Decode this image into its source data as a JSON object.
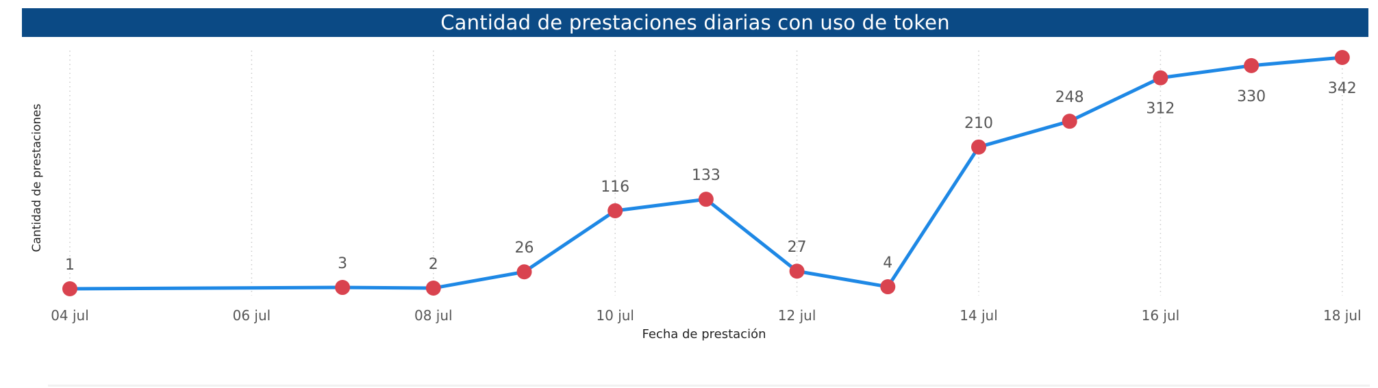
{
  "chart_data": {
    "type": "line",
    "title": "Cantidad de prestaciones diarias con uso de token",
    "xlabel": "Fecha de prestación",
    "ylabel": "Cantidad de prestaciones",
    "x_ticks": [
      "04 jul",
      "06 jul",
      "08 jul",
      "10 jul",
      "12 jul",
      "14 jul",
      "16 jul",
      "18 jul"
    ],
    "grid": "vertical dotted",
    "series": [
      {
        "x": [
          "04 jul",
          "07 jul",
          "08 jul",
          "09 jul",
          "10 jul",
          "11 jul",
          "12 jul",
          "13 jul",
          "14 jul",
          "15 jul",
          "16 jul",
          "17 jul",
          "18 jul"
        ],
        "values": [
          1,
          3,
          2,
          26,
          116,
          133,
          27,
          4,
          210,
          248,
          312,
          330,
          342
        ],
        "labels": [
          "1",
          "3",
          "2",
          "26",
          "116",
          "133",
          "27",
          "4",
          "210",
          "248",
          "312",
          "330",
          "342"
        ]
      }
    ],
    "colors": {
      "line": "#1e88e5",
      "marker": "#d9434f",
      "header": "#0b4a85"
    }
  }
}
